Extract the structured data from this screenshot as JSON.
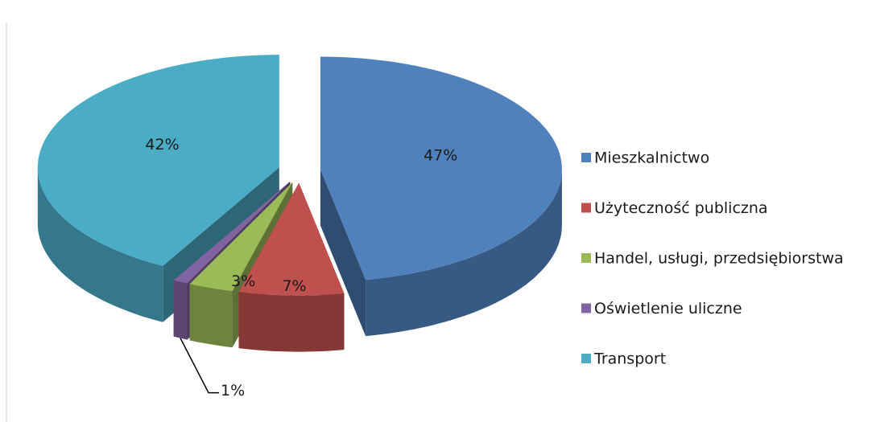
{
  "chart_data": {
    "type": "pie3d",
    "categories": [
      "Mieszkalnictwo",
      "Użyteczność publiczna",
      "Handel, usługi, przedsiębiorstwa",
      "Oświetlenie uliczne",
      "Transport"
    ],
    "values": [
      47,
      7,
      3,
      1,
      42
    ],
    "value_labels": [
      "47%",
      "7%",
      "3%",
      "1%",
      "42%"
    ],
    "colors": [
      "#4f81bd",
      "#c0504d",
      "#9bbb59",
      "#8064a2",
      "#4bacc6"
    ],
    "legend": "right"
  }
}
